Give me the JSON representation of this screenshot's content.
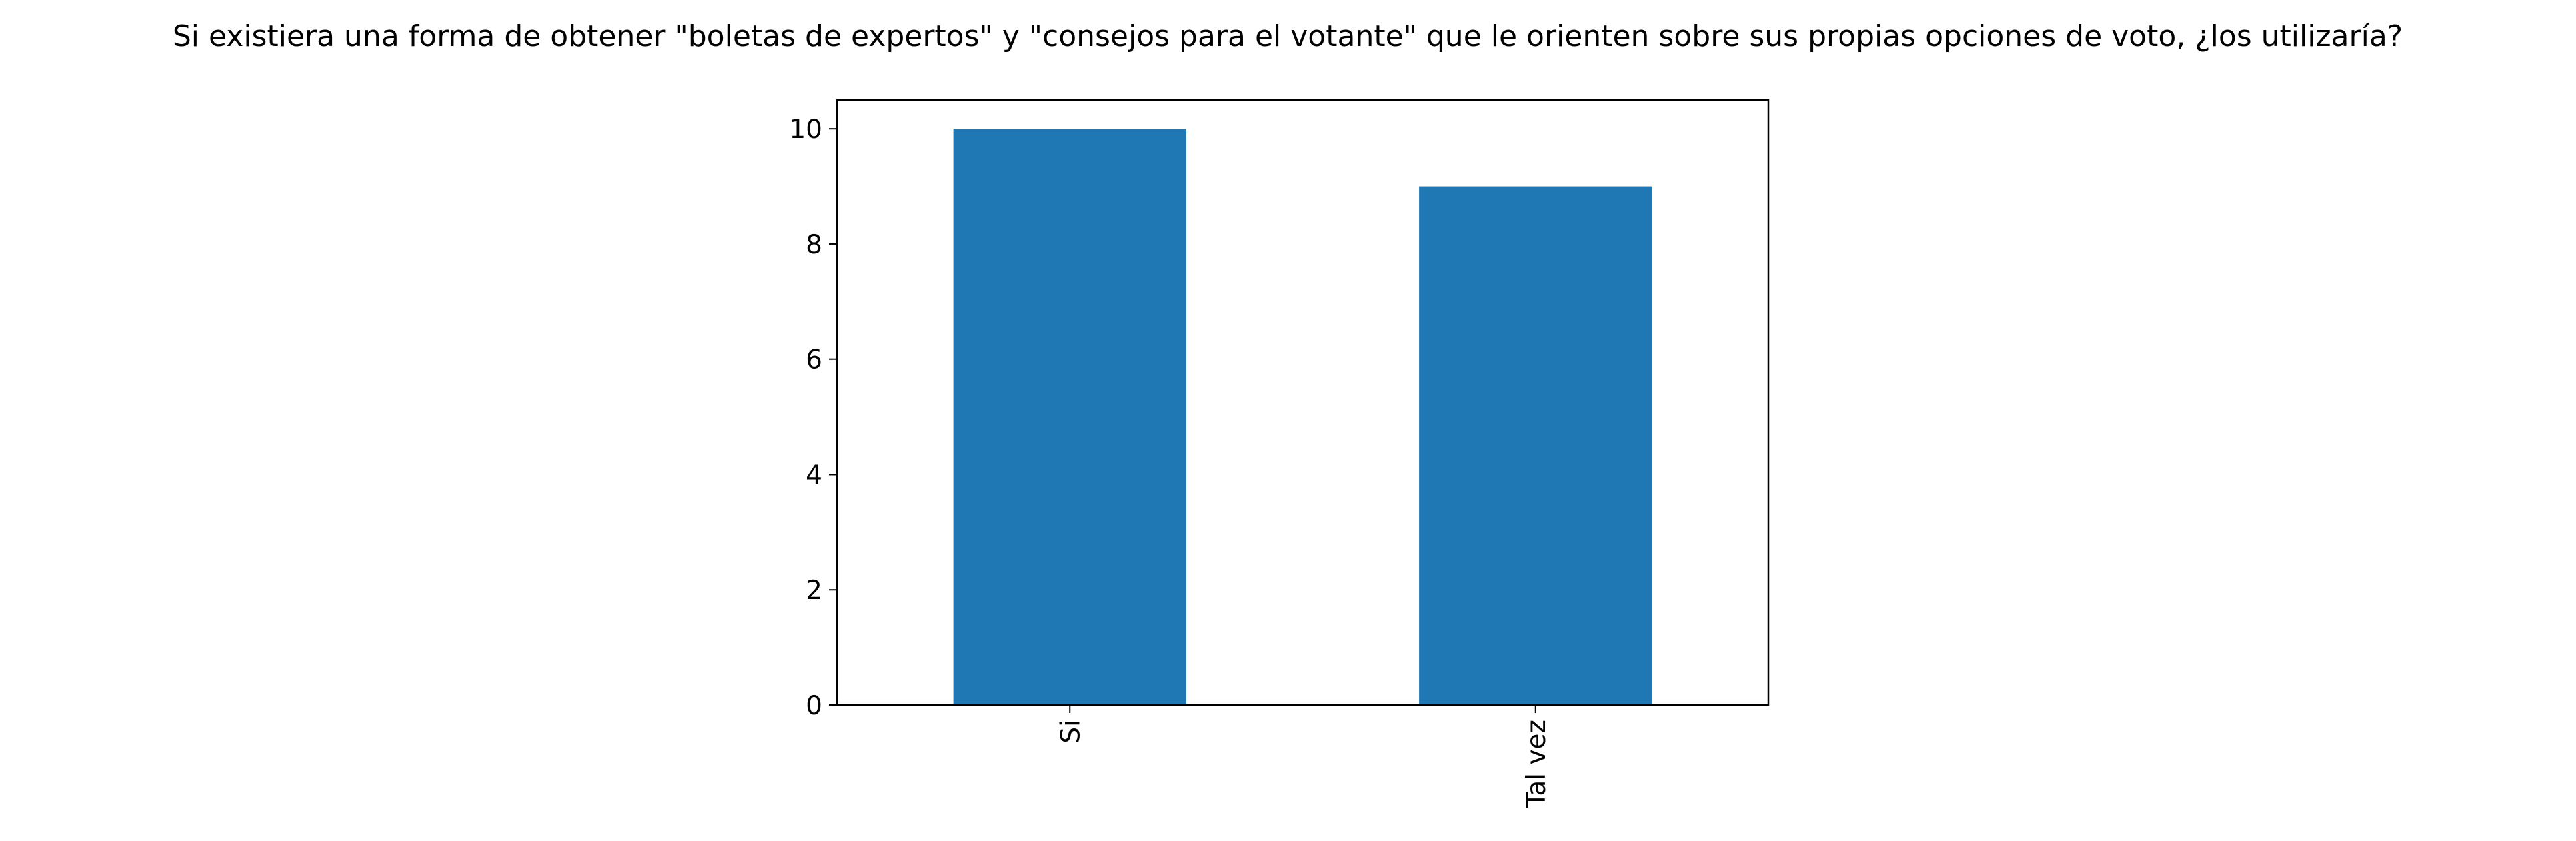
{
  "chart_data": {
    "type": "bar",
    "title": "Si existiera una forma de obtener \"boletas de expertos\" y \"consejos para el votante\" que le orienten sobre sus propias opciones de voto, ¿los utilizaría?",
    "xlabel": "",
    "ylabel": "",
    "categories": [
      "Si",
      "Tal vez"
    ],
    "values": [
      10,
      9
    ],
    "ylim": [
      0,
      10.5
    ],
    "yticks": [
      0,
      2,
      4,
      6,
      8,
      10
    ],
    "xtick_rotation": 90,
    "grid": false,
    "legend": "none",
    "colors": {
      "bar": "#1f77b4",
      "axis": "#000000",
      "background": "#ffffff"
    }
  }
}
